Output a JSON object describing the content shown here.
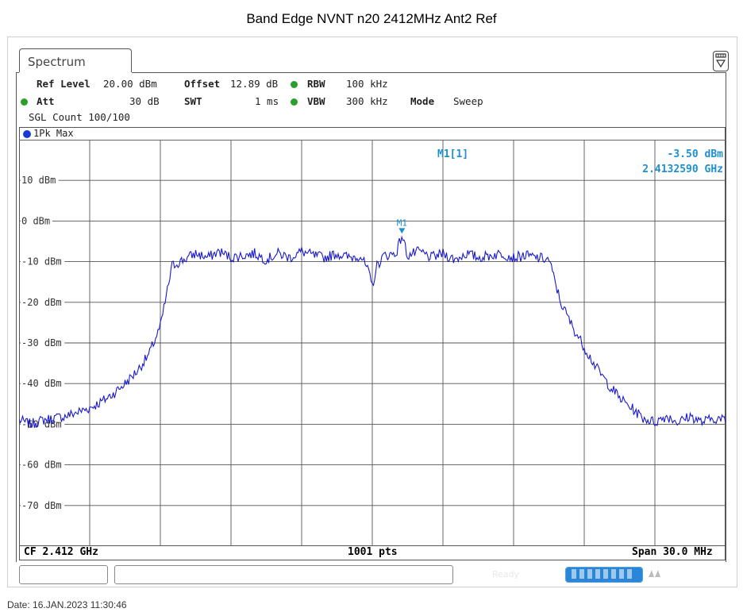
{
  "title": "Band Edge NVNT n20 2412MHz Ant2 Ref",
  "tab_label": "Spectrum",
  "settings": {
    "ref_level_label": "Ref Level",
    "ref_level_value": "20.00 dBm",
    "offset_label": "Offset",
    "offset_value": "12.89 dB",
    "rbw_label": "RBW",
    "rbw_value": "100 kHz",
    "att_label": "Att",
    "att_value": "30 dB",
    "swt_label": "SWT",
    "swt_value": "1 ms",
    "vbw_label": "VBW",
    "vbw_value": "300 kHz",
    "mode_label": "Mode",
    "mode_value": "Sweep",
    "sgl_count": "SGL Count 100/100"
  },
  "trace_label": "1Pk Max",
  "marker": {
    "name": "M1[1]",
    "tag": "M1",
    "level": "-3.50 dBm",
    "freq": "2.4132590 GHz"
  },
  "status": {
    "center": "CF 2.412 GHz",
    "points": "1001 pts",
    "span": "Span 30.0 MHz",
    "ready": "Ready"
  },
  "date": "Date: 16.JAN.2023  11:30:46",
  "colors": {
    "trace": "#1a1acd",
    "marker": "#1e90d0",
    "grid": "#555555",
    "led": "#2aa02a"
  },
  "chart_data": {
    "type": "line",
    "title": "",
    "xlabel": "",
    "ylabel": "",
    "x_unit": "MHz",
    "xlim": [
      2397.0,
      2427.0
    ],
    "ylim": [
      -80,
      20
    ],
    "y_ticks": [
      10,
      0,
      -10,
      -20,
      -30,
      -40,
      -50,
      -60,
      -70
    ],
    "y_tick_labels": [
      "10 dBm",
      "0 dBm",
      "-10 dBm",
      "-20 dBm",
      "-30 dBm",
      "-40 dBm",
      "-50 dBm",
      "-60 dBm",
      "-70 dBm"
    ],
    "x_divisions": 10,
    "grid": true,
    "series": [
      {
        "x": [
          2397.0,
          2397.5,
          2398.0,
          2398.5,
          2399.0,
          2399.5,
          2400.0,
          2400.5,
          2401.0,
          2401.5,
          2402.0,
          2402.5,
          2403.0,
          2403.2,
          2403.5,
          2404.0,
          2404.5,
          2405.0,
          2405.5,
          2406.0,
          2406.5,
          2407.0,
          2407.5,
          2408.0,
          2408.5,
          2409.0,
          2409.5,
          2410.0,
          2410.5,
          2411.0,
          2411.5,
          2411.8,
          2412.0,
          2412.2,
          2412.5,
          2413.0,
          2413.26,
          2413.5,
          2414.0,
          2414.5,
          2415.0,
          2415.5,
          2416.0,
          2416.5,
          2417.0,
          2417.5,
          2418.0,
          2418.5,
          2419.0,
          2419.5,
          2420.0,
          2420.5,
          2421.0,
          2421.5,
          2422.0,
          2422.5,
          2423.0,
          2423.5,
          2424.0,
          2424.5,
          2425.0,
          2425.5,
          2426.0,
          2426.5,
          2427.0
        ],
        "y": [
          -49,
          -50,
          -49,
          -48.5,
          -48,
          -47,
          -46,
          -44.5,
          -42.5,
          -40,
          -37,
          -33,
          -26,
          -20,
          -11,
          -9.5,
          -8,
          -9,
          -7.5,
          -9,
          -8.5,
          -8,
          -9.5,
          -8,
          -9,
          -7.5,
          -8.5,
          -9,
          -8,
          -9,
          -8.5,
          -12,
          -16,
          -11,
          -8.5,
          -8,
          -3.5,
          -8.5,
          -7.5,
          -9,
          -8,
          -9.5,
          -8,
          -9,
          -8.5,
          -8,
          -9,
          -8.5,
          -9,
          -9.5,
          -20,
          -26,
          -31,
          -36,
          -40,
          -43.5,
          -46,
          -48.5,
          -49.5,
          -48,
          -49.5,
          -48,
          -49.5,
          -48.5,
          -49
        ]
      }
    ],
    "markers": [
      {
        "name": "M1",
        "x": 2413.259,
        "y": -3.5
      }
    ]
  }
}
